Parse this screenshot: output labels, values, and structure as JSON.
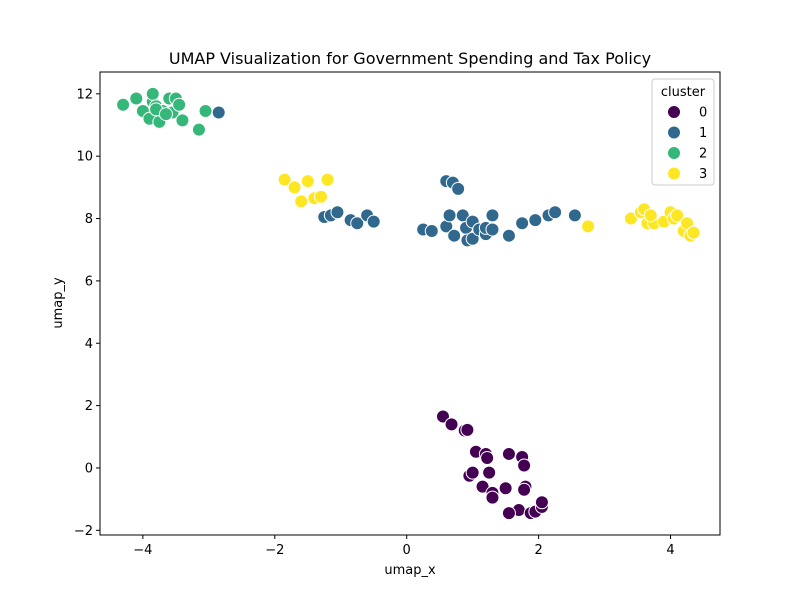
{
  "chart_data": {
    "type": "scatter",
    "title": "UMAP Visualization for Government Spending and Tax Policy",
    "xlabel": "umap_x",
    "ylabel": "umap_y",
    "xlim": [
      -4.65,
      4.75
    ],
    "ylim": [
      -2.15,
      12.7
    ],
    "xticks": [
      -4,
      -2,
      0,
      2,
      4
    ],
    "yticks": [
      -2,
      0,
      2,
      4,
      6,
      8,
      10,
      12
    ],
    "grid": false,
    "legend": {
      "title": "cluster",
      "placement": "top-right"
    },
    "series": [
      {
        "name": "0",
        "color": "#440154",
        "points": [
          [
            0.55,
            1.65
          ],
          [
            0.68,
            1.4
          ],
          [
            0.88,
            1.2
          ],
          [
            0.92,
            1.22
          ],
          [
            1.05,
            0.52
          ],
          [
            1.2,
            0.45
          ],
          [
            1.22,
            0.32
          ],
          [
            1.55,
            0.45
          ],
          [
            1.75,
            0.35
          ],
          [
            1.78,
            0.08
          ],
          [
            0.95,
            -0.25
          ],
          [
            1.0,
            -0.15
          ],
          [
            1.25,
            -0.15
          ],
          [
            1.15,
            -0.6
          ],
          [
            1.3,
            -0.8
          ],
          [
            1.3,
            -0.95
          ],
          [
            1.5,
            -0.65
          ],
          [
            1.8,
            -0.6
          ],
          [
            1.78,
            -0.7
          ],
          [
            1.7,
            -1.35
          ],
          [
            1.55,
            -1.45
          ],
          [
            1.88,
            -1.45
          ],
          [
            1.95,
            -1.4
          ],
          [
            2.05,
            -1.25
          ],
          [
            2.05,
            -1.1
          ]
        ]
      },
      {
        "name": "1",
        "color": "#31688e",
        "points": [
          [
            -2.85,
            11.4
          ],
          [
            -1.25,
            8.05
          ],
          [
            -1.15,
            8.1
          ],
          [
            -1.05,
            8.2
          ],
          [
            -0.85,
            7.95
          ],
          [
            -0.75,
            7.85
          ],
          [
            -0.6,
            8.1
          ],
          [
            -0.5,
            7.9
          ],
          [
            0.25,
            7.65
          ],
          [
            0.38,
            7.6
          ],
          [
            0.6,
            7.75
          ],
          [
            0.65,
            8.1
          ],
          [
            0.72,
            7.45
          ],
          [
            0.6,
            9.2
          ],
          [
            0.7,
            9.15
          ],
          [
            0.78,
            8.95
          ],
          [
            0.85,
            8.1
          ],
          [
            0.9,
            7.7
          ],
          [
            0.92,
            7.3
          ],
          [
            1.0,
            7.35
          ],
          [
            1.0,
            7.9
          ],
          [
            1.1,
            7.65
          ],
          [
            1.2,
            7.5
          ],
          [
            1.2,
            7.7
          ],
          [
            1.3,
            8.1
          ],
          [
            1.3,
            7.65
          ],
          [
            1.55,
            7.45
          ],
          [
            1.75,
            7.85
          ],
          [
            1.95,
            7.95
          ],
          [
            2.15,
            8.1
          ],
          [
            2.25,
            8.2
          ],
          [
            2.55,
            8.1
          ]
        ]
      },
      {
        "name": "2",
        "color": "#35b779",
        "points": [
          [
            -4.3,
            11.65
          ],
          [
            -4.1,
            11.85
          ],
          [
            -4.0,
            11.45
          ],
          [
            -3.9,
            11.2
          ],
          [
            -3.85,
            11.75
          ],
          [
            -3.85,
            12.0
          ],
          [
            -3.8,
            11.6
          ],
          [
            -3.75,
            11.1
          ],
          [
            -3.7,
            11.45
          ],
          [
            -3.6,
            11.85
          ],
          [
            -3.55,
            11.4
          ],
          [
            -3.5,
            11.85
          ],
          [
            -3.45,
            11.65
          ],
          [
            -3.4,
            11.15
          ],
          [
            -3.15,
            10.85
          ],
          [
            -3.05,
            11.45
          ],
          [
            -3.8,
            11.5
          ],
          [
            -3.65,
            11.35
          ]
        ]
      },
      {
        "name": "3",
        "color": "#fde725",
        "points": [
          [
            -1.85,
            9.25
          ],
          [
            -1.7,
            9.0
          ],
          [
            -1.6,
            8.55
          ],
          [
            -1.5,
            9.2
          ],
          [
            -1.4,
            8.65
          ],
          [
            -1.3,
            8.7
          ],
          [
            -1.2,
            9.25
          ],
          [
            2.75,
            7.75
          ],
          [
            3.4,
            8.0
          ],
          [
            3.55,
            8.2
          ],
          [
            3.6,
            8.3
          ],
          [
            3.65,
            7.85
          ],
          [
            3.75,
            7.85
          ],
          [
            3.7,
            8.1
          ],
          [
            3.9,
            7.9
          ],
          [
            4.0,
            8.2
          ],
          [
            4.05,
            8.0
          ],
          [
            4.1,
            8.1
          ],
          [
            4.2,
            7.6
          ],
          [
            4.25,
            7.85
          ],
          [
            4.3,
            7.45
          ],
          [
            4.35,
            7.55
          ]
        ]
      }
    ]
  }
}
